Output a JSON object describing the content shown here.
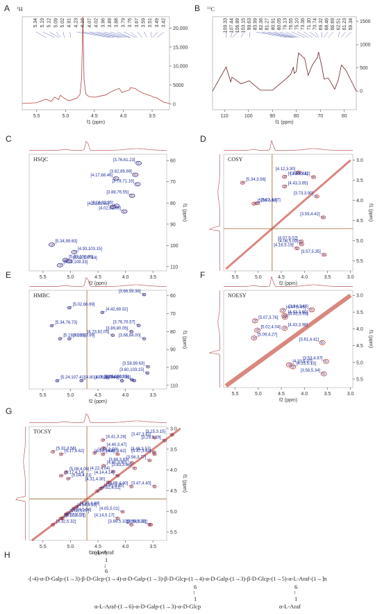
{
  "panels": {
    "A": {
      "letter": "A",
      "nucleus": "1H",
      "xlabel": "f1 (ppm)",
      "xticks": [
        "5.5",
        "5.0",
        "4.5",
        "4.0",
        "3.5"
      ],
      "yticks": [
        "0",
        "5000",
        "10,000",
        "15,000",
        "20,000"
      ],
      "peaks": [
        "5.34",
        "5.19",
        "5.12",
        "5.09",
        "5.02",
        "4.91",
        "4.23",
        "4.16",
        "4.07",
        "4.02",
        "3.96",
        "3.89",
        "3.88",
        "3.79",
        "3.76",
        "3.67",
        "3.59",
        "3.51",
        "3.49",
        "3.42"
      ]
    },
    "B": {
      "letter": "B",
      "nucleus": "13C",
      "xlabel": "f1 (ppm)",
      "xticks": [
        "110",
        "100",
        "90",
        "80",
        "70",
        "60"
      ],
      "yticks": [
        "0",
        "500",
        "1000",
        "1500"
      ],
      "peaks": [
        "109.33",
        "107.44",
        "106.89",
        "103.15",
        "99.63",
        "83.99",
        "82.36",
        "81.27",
        "80.91",
        "80.05",
        "79.13",
        "76.55",
        "75.10",
        "73.36",
        "71.30",
        "70.74",
        "69.32",
        "68.46",
        "66.69",
        "62.51",
        "61.23",
        "59.34"
      ]
    },
    "C": {
      "letter": "C",
      "title": "HSQC",
      "xlabel": "f2 (ppm)",
      "ylabel": "f1 (ppm)",
      "xticks": [
        "5.5",
        "5.0",
        "4.5",
        "4.0",
        "3.5"
      ],
      "yticks": [
        "60",
        "70",
        "80",
        "90",
        "100",
        "110"
      ],
      "labels": [
        "[3.76,61.23]",
        "[3.82,66.69]",
        "[4.17,68.46]",
        "[3.78,71.16]",
        "[3.88,76.55]",
        "[4.23,81.85]",
        "[4.16,81.35]",
        "[4.02,83.99]",
        "[5.34,99.63]",
        "[4.93,103.15]",
        "[5.09,106.89]",
        "[5.19,109.33]",
        "[5.02,107.44]"
      ]
    },
    "D": {
      "letter": "D",
      "title": "COSY",
      "xlabel": "f2 (ppm)",
      "ylabel": "f1 (ppm)",
      "xticks": [
        "5.5",
        "5.0",
        "4.5",
        "4.0",
        "3.5",
        "3.0"
      ],
      "yticks": [
        "3.0",
        "3.5",
        "4.0",
        "4.5",
        "5.0",
        "5.5"
      ],
      "labels": [
        "[3.80,3.42]",
        "[4.43,3.41]",
        "[5.34,3.56]",
        "[4.43,3.65]",
        "[4.12,3.30]",
        "[5.02,4.07]",
        "[5.09,4.08]",
        "[4.06,5.09]",
        "[3.73,3.90]",
        "[4.07,5.02]",
        "[4.16,5.19]",
        "[3.57,5.35]",
        "[3.59,4.42]"
      ]
    },
    "E": {
      "letter": "E",
      "title": "HMBC",
      "xlabel": "f2 (ppm)",
      "ylabel": "f1 (ppm)",
      "xticks": [
        "5.5",
        "5.0",
        "4.5",
        "4.0",
        "3.5"
      ],
      "yticks": [
        "60",
        "70",
        "80",
        "90",
        "100",
        "110"
      ],
      "labels": [
        "[3.66,59.38]",
        "[5.02,66.69]",
        "[4.42,69.32]",
        "[5.34,76.73]",
        "[3.76,76.57]",
        "[5.02,83.99]",
        "[4.23,82.05]",
        "[5.19,83.99]",
        "[3.89,80.05]",
        "[3.66,84.00]",
        "[3.59,99.63]",
        "[3.60,103.15]",
        "[4.80,107.36]",
        "[4.06,107.44]",
        "[5.24,107.41]",
        "[3.88,106.89]",
        "[3.84,107.36]"
      ]
    },
    "F": {
      "letter": "F",
      "title": "NOESY",
      "xlabel": "f2 (ppm)",
      "ylabel": "f1 (ppm)",
      "xticks": [
        "5.5",
        "5.0",
        "4.5",
        "4.0",
        "3.5",
        "3.0"
      ],
      "yticks": [
        "3.0",
        "3.5",
        "4.0",
        "4.5",
        "5.0",
        "5.5"
      ],
      "labels": [
        "[4.47,3.45]",
        "[4.43,3.60]",
        "[4.42,3.65]",
        "[5.02,4.04]",
        "[5.07,3.76]",
        "[5.09,4.27]",
        "[4.43,3.98]",
        "[3.84,3.43]",
        "[3.61,4.41]",
        "[3.53,4.97]",
        "[4.33,5.07]",
        "[4.25,5.13]",
        "[3.58,5.34]"
      ]
    },
    "G": {
      "letter": "G",
      "title": "TOCSY",
      "xlabel": "f2 (ppm)",
      "ylabel": "f1 (ppm)",
      "xticks": [
        "5.5",
        "5.0",
        "4.5",
        "4.0",
        "3.5"
      ],
      "yticks": [
        "3.0",
        "3.5",
        "4.0",
        "4.5",
        "5.0",
        "5.5"
      ],
      "labels": [
        "[3.15,3.15]",
        "[3.29,3.29]",
        "[4.41,3.28]",
        "[4.40,3.47]",
        "[3.47,3.22]",
        "[3.47,3.62]",
        "[5.32,3.56]",
        "[4.41,3.62]",
        "[4.56,3.59]",
        "[3.48,3.57]",
        "[5.17,3.62]",
        "[4.14,3.62]",
        "[3.88,3.83]",
        "[3.56,3.77]",
        "[5.17,4.14]",
        "[4.40,3.90]",
        "[5.08,4.06]",
        "[4.22,4.04]",
        "[4.14,4.14]",
        "[3.83,3.96]",
        "[5.04,4.21]",
        "[4.31,4.30]",
        "[3.47,4.40]",
        "[4.45,4.45]",
        "[4.51,4.51]",
        "[3.89,4.40]",
        "[4.89,4.89]",
        "[5.04,5.04]",
        "[4.94,4.93]",
        "[4.05,5.01]",
        "[5.17,5.17]",
        "[5.08,5.07]",
        "[5.15,5.17]",
        "[4.14,5.17]",
        "[3.54,5.32]",
        "[5.32,5.32]",
        "[3.89,5.32]",
        "[3.56,5.32]"
      ]
    },
    "H": {
      "letter": "H",
      "top_branch": "α-L-Araf",
      "top_link": "1",
      "top_arrow": "↓",
      "top_pos": "6",
      "backbone": "-[-4)-α-D-Galp-(1→3)-β-D-Glcp-(1→4)-α-D-Galp-(1→3)-β-D-Glcp-(1→4)-α-D-Galp-(1→3)-β-D-Glcp-(1→5)-α-L-Araf-(1→]n",
      "left_pos": "6",
      "left_arrow": "↑",
      "left_link": "1",
      "left_branch": "α-L-Araf-(1→6)-α-D-Galp-(1→3)-α-D-Glcp",
      "right_pos": "6",
      "right_arrow": "↑",
      "right_link": "1",
      "right_branch": "α-L-Araf"
    }
  },
  "chart_data": [
    {
      "type": "line",
      "panel": "A",
      "title": "",
      "xlabel": "f1 (ppm)",
      "xlim": [
        5.75,
        3.2
      ],
      "ylim": [
        -1500,
        23000
      ],
      "x": [
        5.75,
        5.5,
        5.34,
        5.25,
        5.19,
        5.12,
        5.09,
        5.02,
        4.95,
        4.91,
        4.8,
        4.75,
        4.72,
        4.7,
        4.68,
        4.65,
        4.6,
        4.5,
        4.4,
        4.3,
        4.23,
        4.16,
        4.07,
        4.02,
        3.96,
        3.89,
        3.88,
        3.79,
        3.76,
        3.67,
        3.59,
        3.51,
        3.49,
        3.42,
        3.3,
        3.2
      ],
      "y": [
        150,
        350,
        1300,
        700,
        1800,
        1200,
        2300,
        1500,
        900,
        1000,
        1600,
        2500,
        7000,
        23000,
        6500,
        2700,
        2000,
        1800,
        2100,
        2400,
        3100,
        3600,
        4100,
        3000,
        3400,
        3700,
        4300,
        4100,
        3700,
        2900,
        2500,
        2100,
        1900,
        1600,
        500,
        150
      ]
    },
    {
      "type": "line",
      "panel": "B",
      "title": "",
      "xlabel": "f1 (ppm)",
      "xlim": [
        115,
        55
      ],
      "ylim": [
        -400,
        1600
      ],
      "x": [
        115,
        109.33,
        107.44,
        106.89,
        103.15,
        99.63,
        95,
        90,
        83.99,
        82.36,
        81.27,
        80.91,
        80.05,
        79.13,
        76.55,
        75.1,
        73.36,
        71.3,
        70.74,
        69.32,
        68.46,
        66.69,
        64,
        62.51,
        61.23,
        59.34,
        55
      ],
      "y": [
        0,
        520,
        200,
        300,
        160,
        220,
        20,
        20,
        280,
        360,
        520,
        380,
        420,
        820,
        700,
        340,
        560,
        720,
        840,
        510,
        260,
        280,
        40,
        240,
        560,
        450,
        0
      ]
    },
    {
      "type": "scatter",
      "panel": "C",
      "title": "HSQC",
      "xlabel": "f2 (ppm)",
      "ylabel": "f1 (ppm)",
      "xlim": [
        5.75,
        3.25
      ],
      "ylim": [
        57,
        112
      ],
      "points": [
        [
          3.76,
          61.23
        ],
        [
          3.82,
          66.69
        ],
        [
          4.17,
          68.46
        ],
        [
          3.78,
          71.16
        ],
        [
          3.88,
          76.55
        ],
        [
          4.23,
          81.85
        ],
        [
          4.16,
          81.35
        ],
        [
          4.02,
          83.99
        ],
        [
          5.34,
          99.63
        ],
        [
          4.93,
          103.15
        ],
        [
          5.09,
          106.89
        ],
        [
          5.19,
          109.33
        ],
        [
          5.02,
          107.44
        ]
      ]
    },
    {
      "type": "scatter",
      "panel": "D",
      "title": "COSY",
      "xlabel": "f2 (ppm)",
      "ylabel": "f1 (ppm)",
      "xlim": [
        5.75,
        2.95
      ],
      "ylim": [
        2.85,
        5.75
      ],
      "points": [
        [
          3.8,
          3.42
        ],
        [
          4.43,
          3.41
        ],
        [
          5.34,
          3.56
        ],
        [
          4.43,
          3.65
        ],
        [
          4.12,
          3.3
        ],
        [
          5.02,
          4.07
        ],
        [
          5.09,
          4.08
        ],
        [
          4.06,
          5.09
        ],
        [
          3.73,
          3.9
        ],
        [
          4.07,
          5.02
        ],
        [
          4.16,
          5.19
        ],
        [
          3.57,
          5.35
        ],
        [
          3.59,
          4.42
        ]
      ]
    },
    {
      "type": "scatter",
      "panel": "E",
      "title": "HMBC",
      "xlabel": "f2 (ppm)",
      "ylabel": "f1 (ppm)",
      "xlim": [
        5.75,
        3.25
      ],
      "ylim": [
        57,
        112
      ],
      "points": [
        [
          3.66,
          59.38
        ],
        [
          5.02,
          66.69
        ],
        [
          4.42,
          69.32
        ],
        [
          5.34,
          76.73
        ],
        [
          3.76,
          76.57
        ],
        [
          5.02,
          83.99
        ],
        [
          4.23,
          82.05
        ],
        [
          5.19,
          83.99
        ],
        [
          3.89,
          80.05
        ],
        [
          3.66,
          84.0
        ],
        [
          3.59,
          99.63
        ],
        [
          3.6,
          103.15
        ],
        [
          4.8,
          107.36
        ],
        [
          4.06,
          107.44
        ],
        [
          5.24,
          107.41
        ],
        [
          3.88,
          106.89
        ],
        [
          3.84,
          107.36
        ]
      ]
    },
    {
      "type": "scatter",
      "panel": "F",
      "title": "NOESY",
      "xlabel": "f2 (ppm)",
      "ylabel": "f1 (ppm)",
      "xlim": [
        5.75,
        2.95
      ],
      "ylim": [
        2.85,
        5.75
      ],
      "points": [
        [
          4.47,
          3.45
        ],
        [
          4.43,
          3.6
        ],
        [
          4.42,
          3.65
        ],
        [
          5.02,
          4.04
        ],
        [
          5.07,
          3.76
        ],
        [
          5.09,
          4.27
        ],
        [
          4.43,
          3.98
        ],
        [
          3.84,
          3.43
        ],
        [
          3.61,
          4.41
        ],
        [
          3.53,
          4.97
        ],
        [
          4.33,
          5.07
        ],
        [
          4.25,
          5.13
        ],
        [
          3.58,
          5.34
        ]
      ]
    },
    {
      "type": "scatter",
      "panel": "G",
      "title": "TOCSY",
      "xlabel": "f2 (ppm)",
      "ylabel": "f1 (ppm)",
      "xlim": [
        5.75,
        3.25
      ],
      "ylim": [
        2.95,
        5.7
      ],
      "points": [
        [
          3.15,
          3.15
        ],
        [
          3.29,
          3.29
        ],
        [
          4.41,
          3.28
        ],
        [
          4.4,
          3.47
        ],
        [
          3.47,
          3.22
        ],
        [
          3.47,
          3.62
        ],
        [
          5.32,
          3.56
        ],
        [
          4.41,
          3.62
        ],
        [
          4.56,
          3.59
        ],
        [
          3.48,
          3.57
        ],
        [
          5.17,
          3.62
        ],
        [
          4.14,
          3.62
        ],
        [
          3.88,
          3.83
        ],
        [
          3.56,
          3.77
        ],
        [
          5.17,
          4.14
        ],
        [
          4.4,
          3.9
        ],
        [
          5.08,
          4.06
        ],
        [
          4.22,
          4.04
        ],
        [
          4.14,
          4.14
        ],
        [
          3.83,
          3.96
        ],
        [
          5.04,
          4.21
        ],
        [
          4.31,
          4.3
        ],
        [
          3.47,
          4.4
        ],
        [
          4.45,
          4.45
        ],
        [
          4.51,
          4.51
        ],
        [
          3.89,
          4.4
        ],
        [
          4.89,
          4.89
        ],
        [
          5.04,
          5.04
        ],
        [
          4.94,
          4.93
        ],
        [
          4.05,
          5.01
        ],
        [
          5.17,
          5.17
        ],
        [
          5.08,
          5.07
        ],
        [
          5.15,
          5.17
        ],
        [
          4.14,
          5.17
        ],
        [
          3.54,
          5.32
        ],
        [
          5.32,
          5.32
        ],
        [
          3.89,
          5.32
        ],
        [
          3.56,
          5.32
        ]
      ]
    }
  ]
}
